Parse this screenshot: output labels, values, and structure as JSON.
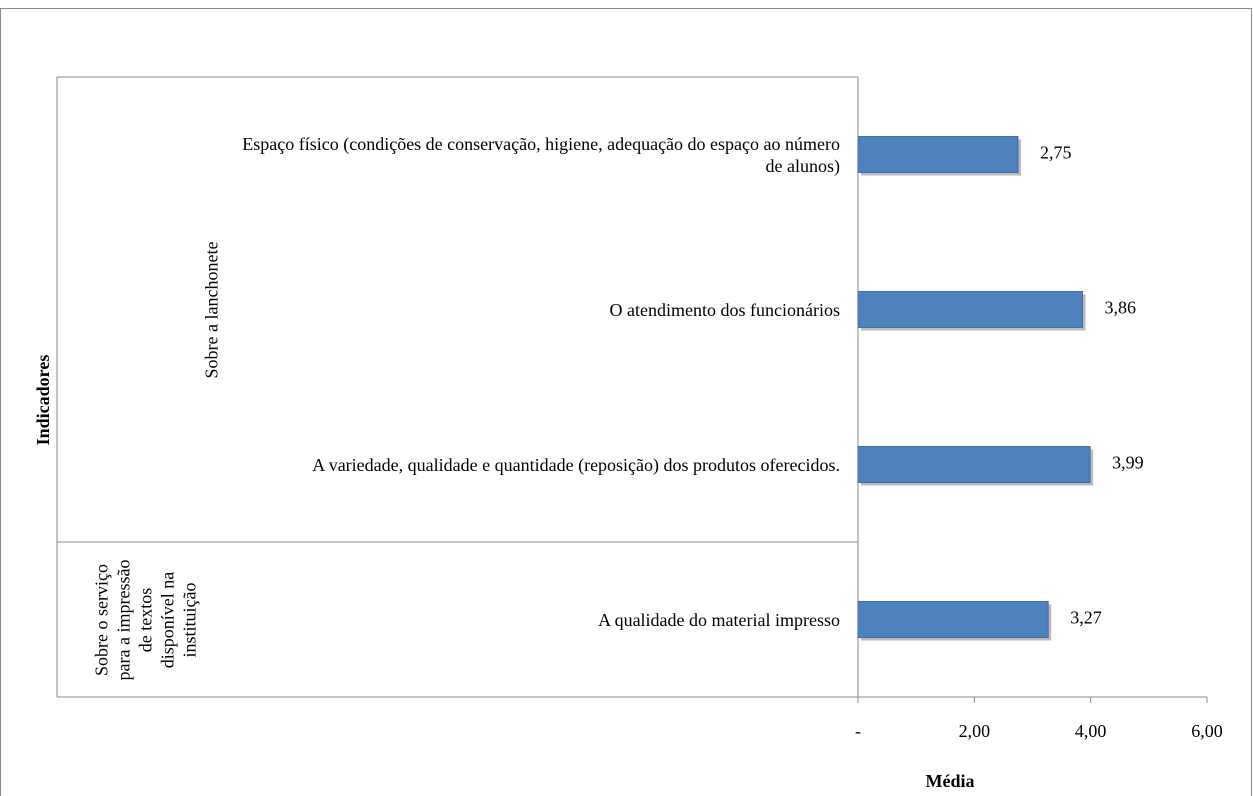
{
  "chart_data": {
    "type": "bar",
    "orientation": "horizontal",
    "y_axis_label": "Indicadores",
    "x_axis_label": "Média",
    "groups": [
      "Sobre a lanchonete",
      "Sobre o serviço para a impressão de textos disponível na instituição"
    ],
    "categories": [
      "Espaço físico (condições de conservação, higiene, adequação do espaço ao número de alunos)",
      "O atendimento dos funcionários",
      "A variedade, qualidade e quantidade (reposição) dos produtos oferecidos.",
      "A qualidade do material impresso"
    ],
    "values": [
      2.75,
      3.86,
      3.99,
      3.27
    ],
    "value_labels": [
      "2,75",
      "3,86",
      "3,99",
      "3,27"
    ],
    "color": "#4f81bd",
    "xlim": [
      0,
      6
    ],
    "xticks": [
      {
        "value": 0,
        "label": "-"
      },
      {
        "value": 2,
        "label": "2,00"
      },
      {
        "value": 4,
        "label": "4,00"
      },
      {
        "value": 6,
        "label": "6,00"
      }
    ]
  }
}
